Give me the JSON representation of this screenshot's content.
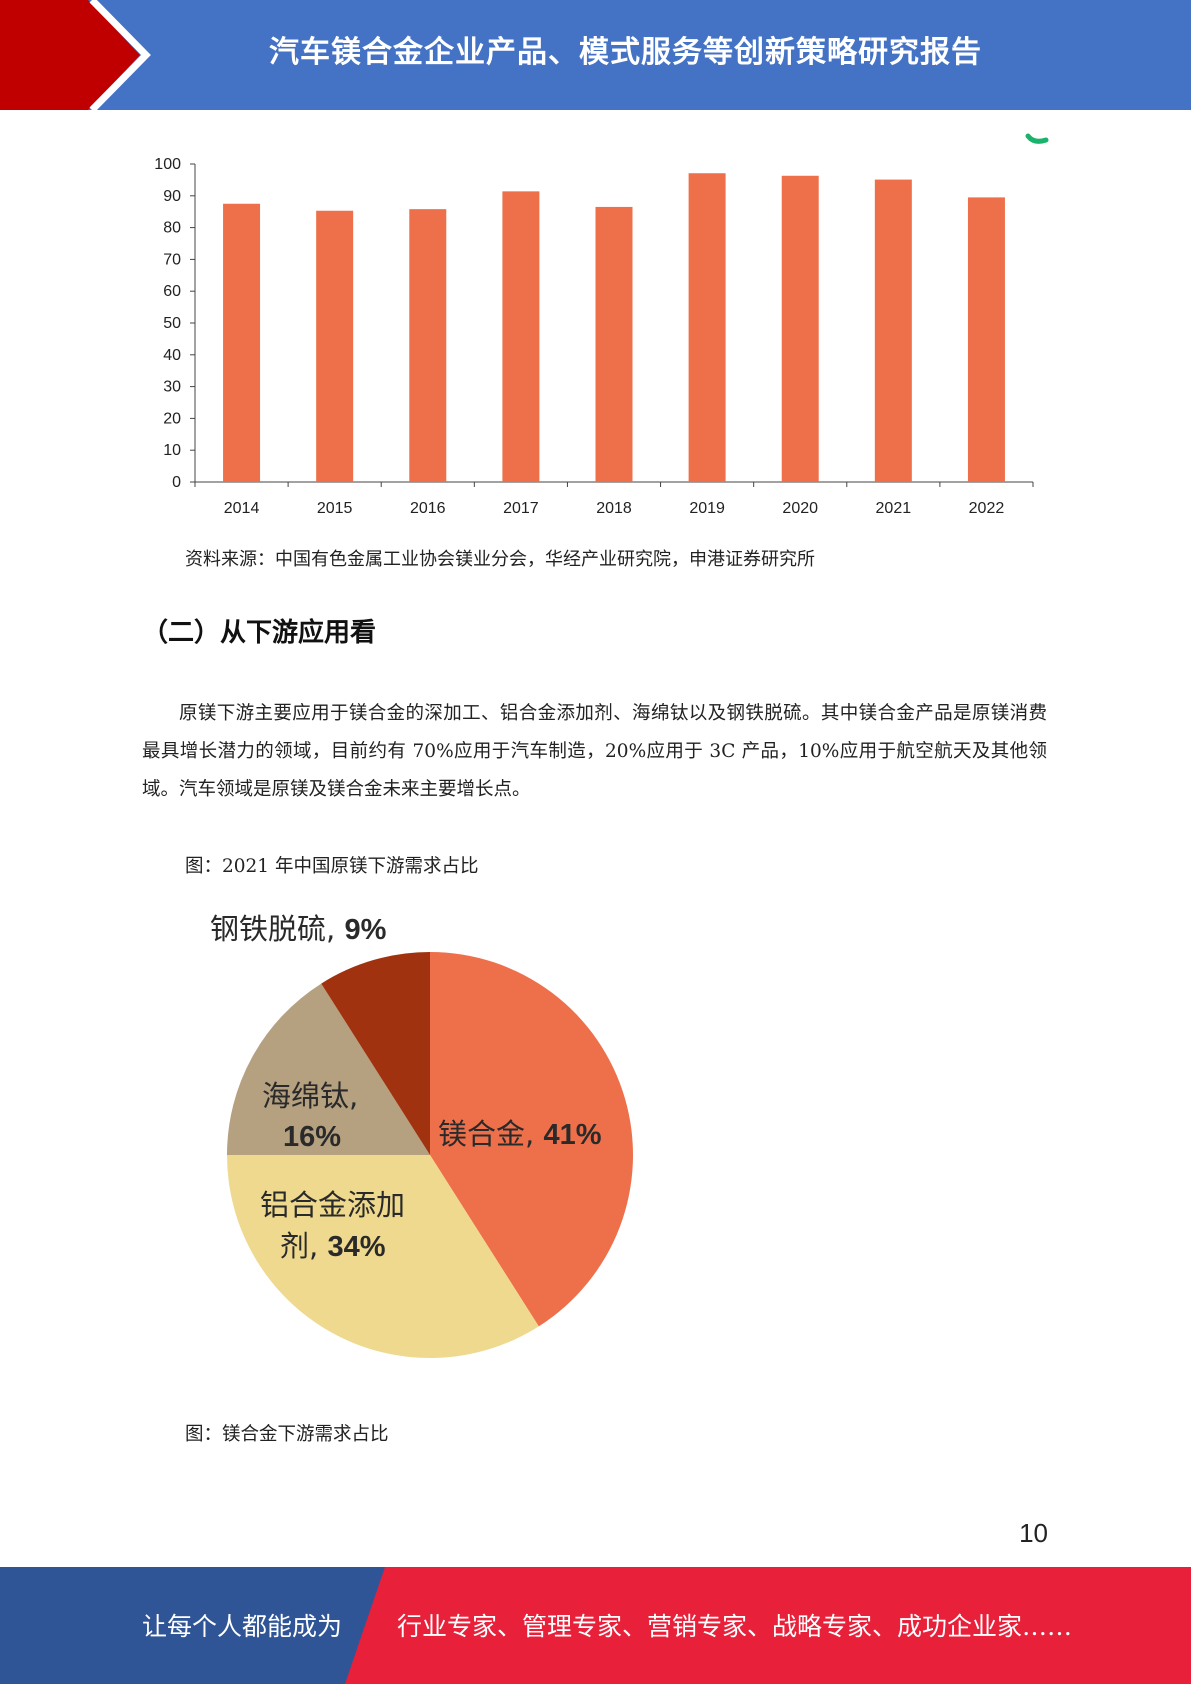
{
  "header": {
    "title": "汽车镁合金企业产品、模式服务等创新策略研究报告",
    "colors": {
      "blue": "#4472C4",
      "red": "#C00000"
    }
  },
  "chart_data": [
    {
      "type": "bar",
      "categories": [
        "2014",
        "2015",
        "2016",
        "2017",
        "2018",
        "2019",
        "2020",
        "2021",
        "2022"
      ],
      "values": [
        87.5,
        85.3,
        85.8,
        91.4,
        86.5,
        97.1,
        96.3,
        95.1,
        89.5
      ],
      "ylim": [
        0,
        100
      ],
      "yticks": [
        "0",
        "10",
        "20",
        "30",
        "40",
        "50",
        "60",
        "70",
        "80",
        "90",
        "100"
      ],
      "color": "#EE704B",
      "grid": false
    },
    {
      "type": "pie",
      "slices": [
        {
          "name": "镁合金",
          "pct_label": "41%",
          "value": 41,
          "color": "#EE704B"
        },
        {
          "name": "铝合金添加剂",
          "pct_label": "34%",
          "value": 34,
          "color": "#EFD98E"
        },
        {
          "name": "海绵钛",
          "pct_label": "16%",
          "value": 16,
          "color": "#B5A080"
        },
        {
          "name": "钢铁脱硫",
          "pct_label": "9%",
          "value": 9,
          "color": "#A0320F"
        }
      ],
      "labels": {
        "magnesium": [
          "镁合金, ",
          "41%"
        ],
        "aluminum_line1": "铝合金添加",
        "aluminum_line2": [
          "剂, ",
          "34%"
        ],
        "sponge_line1": "海绵钛,",
        "sponge_line2": "16%",
        "steel": [
          "钢铁脱硫, ",
          "9%"
        ]
      }
    }
  ],
  "source_text": "资料来源：中国有色金属工业协会镁业分会，华经产业研究院，申港证券研究所",
  "section_heading": "（二）从下游应用看",
  "paragraph": "原镁下游主要应用于镁合金的深加工、铝合金添加剂、海绵钛以及钢铁脱硫。其中镁合金产品是原镁消费最具增长潜力的领域，目前约有 70%应用于汽车制造，20%应用于 3C 产品，10%应用于航空航天及其他领域。汽车领域是原镁及镁合金未来主要增长点。",
  "caption_pie": "图：2021 年中国原镁下游需求占比",
  "caption_next": "图：镁合金下游需求占比",
  "page_number": "10",
  "footer": {
    "left": "让每个人都能成为",
    "right": "行业专家、管理专家、营销专家、战略专家、成功企业家……",
    "colors": {
      "blue": "#2F5597",
      "red": "#E8203A"
    }
  }
}
